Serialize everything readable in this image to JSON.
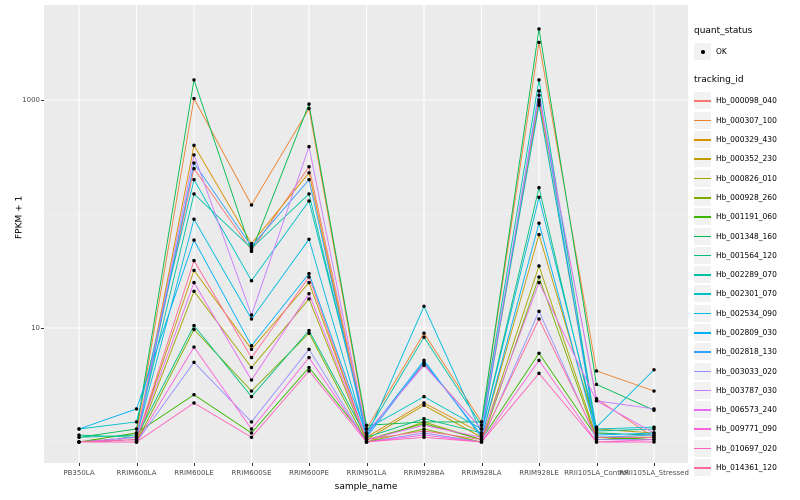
{
  "chart_data": {
    "type": "line",
    "title": "",
    "xlabel": "sample_name",
    "ylabel": "FPKM + 1",
    "y_scale": "log10",
    "ylim": [
      0.66,
      6100
    ],
    "y_major_ticks": [
      10,
      1000
    ],
    "y_tick_labels": [
      "10",
      "1000"
    ],
    "y_minor_gridlines": [
      1,
      100
    ],
    "grid": true,
    "panel_background": "#EBEBEB",
    "gridline_color": "#FFFFFF",
    "point_color": "#000000",
    "categories": [
      "PB350LA",
      "RRIM600LA",
      "RRIM600LE",
      "RRIM600SE",
      "RRIM600PE",
      "RRIM901LA",
      "RRIM928BA",
      "RRIM928LA",
      "RRIM928LE",
      "RRII105LA_Control",
      "RRII105LA_Stressed"
    ],
    "series": [
      {
        "name": "Hb_000098_040",
        "color": "#F8766D",
        "values": [
          1.0,
          1.1,
          250,
          48,
          260,
          1.2,
          4.8,
          1.3,
          1000,
          2.4,
          1.1
        ]
      },
      {
        "name": "Hb_000307_100",
        "color": "#EA8331",
        "values": [
          1.0,
          1.2,
          1030,
          120,
          840,
          1.3,
          9.0,
          1.5,
          3200,
          4.2,
          2.8
        ]
      },
      {
        "name": "Hb_000329_430",
        "color": "#D89000",
        "values": [
          1.0,
          1.1,
          400,
          55,
          230,
          1.1,
          2.2,
          1.2,
          950,
          1.2,
          1.15
        ]
      },
      {
        "name": "Hb_000352_230",
        "color": "#C09B00",
        "values": [
          1.0,
          1.05,
          32,
          6.5,
          25,
          1.05,
          2.1,
          1.1,
          66,
          1.3,
          1.2
        ]
      },
      {
        "name": "Hb_000826_010",
        "color": "#A3A500",
        "values": [
          1.0,
          1.0,
          21,
          4.5,
          18,
          1.0,
          1.5,
          1.05,
          35,
          1.1,
          1.1
        ]
      },
      {
        "name": "Hb_000928_260",
        "color": "#7CAE00",
        "values": [
          1.0,
          1.0,
          9.7,
          2.8,
          9.0,
          1.0,
          1.3,
          1.0,
          28,
          1.05,
          1.1
        ]
      },
      {
        "name": "Hb_001191_060",
        "color": "#39B600",
        "values": [
          1.0,
          1.2,
          2.6,
          1.2,
          4.5,
          1.05,
          1.45,
          1.05,
          6.0,
          1.1,
          1.05
        ]
      },
      {
        "name": "Hb_001348_160",
        "color": "#00BB4E",
        "values": [
          1.1,
          1.3,
          1500,
          47,
          920,
          1.4,
          1.5,
          1.5,
          4200,
          3.2,
          1.9
        ]
      },
      {
        "name": "Hb_001564_120",
        "color": "#00BF7D",
        "values": [
          1.15,
          1.1,
          10.5,
          2.5,
          9.5,
          1.1,
          1.6,
          1.2,
          170,
          1.2,
          1.15
        ]
      },
      {
        "name": "Hb_002289_070",
        "color": "#00C1A3",
        "values": [
          1.1,
          1.15,
          150,
          50,
          150,
          1.2,
          8.3,
          1.4,
          1500,
          1.25,
          1.3
        ]
      },
      {
        "name": "Hb_002301_070",
        "color": "#00BFC4",
        "values": [
          1.3,
          1.5,
          200,
          26,
          130,
          1.3,
          2.5,
          1.3,
          900,
          1.3,
          1.35
        ]
      },
      {
        "name": "Hb_002534_090",
        "color": "#00BAE0",
        "values": [
          1.0,
          1.1,
          90,
          12,
          60,
          1.1,
          15.5,
          1.2,
          140,
          1.35,
          4.3
        ]
      },
      {
        "name": "Hb_002809_030",
        "color": "#00B0F6",
        "values": [
          1.3,
          1.95,
          59,
          7.0,
          30,
          1.15,
          5.2,
          1.1,
          83,
          1.15,
          1.2
        ]
      },
      {
        "name": "Hb_002818_130",
        "color": "#35A2FF",
        "values": [
          1.0,
          1.05,
          280,
          52,
          200,
          1.1,
          5.0,
          1.15,
          1200,
          1.1,
          1.15
        ]
      },
      {
        "name": "Hb_003033_020",
        "color": "#9590FF",
        "values": [
          1.0,
          1.0,
          5.0,
          1.5,
          6.5,
          1.0,
          1.2,
          1.0,
          14,
          1.05,
          1.05
        ]
      },
      {
        "name": "Hb_003787_030",
        "color": "#C77CFF",
        "values": [
          1.0,
          1.1,
          330,
          13,
          390,
          1.2,
          4.7,
          1.3,
          1100,
          2.3,
          1.95
        ]
      },
      {
        "name": "Hb_006573_240",
        "color": "#E76BF3",
        "values": [
          1.0,
          1.05,
          25,
          3.5,
          20,
          1.05,
          1.4,
          1.1,
          25,
          2.3,
          1.2
        ]
      },
      {
        "name": "Hb_009771_090",
        "color": "#FA62DB",
        "values": [
          1.0,
          1.0,
          6.8,
          1.3,
          5.5,
          1.0,
          1.15,
          1.0,
          5.2,
          1.0,
          1.05
        ]
      },
      {
        "name": "Hb_010697_020",
        "color": "#FF62BC",
        "values": [
          1.0,
          1.0,
          2.2,
          1.1,
          4.2,
          1.0,
          1.1,
          1.0,
          4.0,
          1.0,
          1.0
        ]
      },
      {
        "name": "Hb_014361_120",
        "color": "#FF6A98",
        "values": [
          1.0,
          1.05,
          39,
          5.5,
          28,
          1.05,
          1.25,
          1.05,
          12,
          1.1,
          1.1
        ]
      }
    ],
    "legend": {
      "position": "right",
      "quant_status_title": "quant_status",
      "quant_status_entries": [
        {
          "label": "OK",
          "symbol": "point"
        }
      ],
      "tracking_id_title": "tracking_id"
    }
  }
}
